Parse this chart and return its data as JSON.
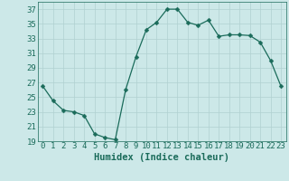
{
  "x": [
    0,
    1,
    2,
    3,
    4,
    5,
    6,
    7,
    8,
    9,
    10,
    11,
    12,
    13,
    14,
    15,
    16,
    17,
    18,
    19,
    20,
    21,
    22,
    23
  ],
  "y": [
    26.5,
    24.5,
    23.2,
    23.0,
    22.5,
    20.0,
    19.5,
    19.2,
    26.0,
    30.5,
    34.2,
    35.2,
    37.0,
    37.0,
    35.2,
    34.8,
    35.5,
    33.3,
    33.5,
    33.5,
    33.4,
    32.5,
    30.0,
    26.5
  ],
  "line_color": "#1a6b5a",
  "marker": "D",
  "marker_size": 2.5,
  "bg_color": "#cce8e8",
  "grid_color": "#b0d0d0",
  "xlabel": "Humidex (Indice chaleur)",
  "ylim": [
    19,
    38
  ],
  "xlim": [
    -0.5,
    23.5
  ],
  "yticks": [
    19,
    21,
    23,
    25,
    27,
    29,
    31,
    33,
    35,
    37
  ],
  "xticks": [
    0,
    1,
    2,
    3,
    4,
    5,
    6,
    7,
    8,
    9,
    10,
    11,
    12,
    13,
    14,
    15,
    16,
    17,
    18,
    19,
    20,
    21,
    22,
    23
  ],
  "font_color": "#1a6b5a",
  "tick_fontsize": 6.5,
  "xlabel_fontsize": 7.5
}
